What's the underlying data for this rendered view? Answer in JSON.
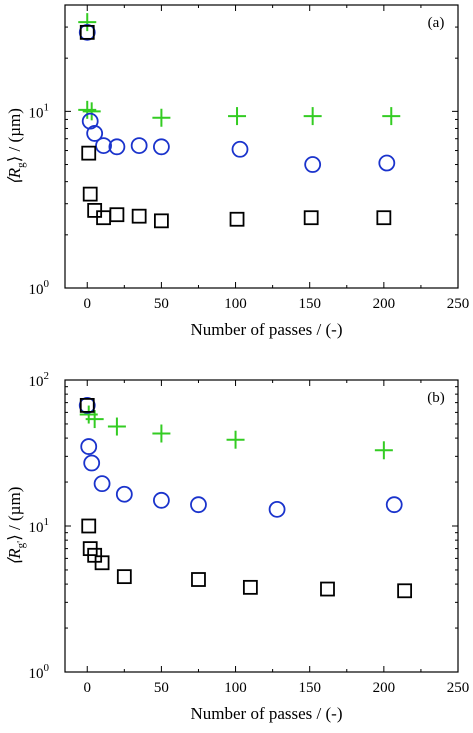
{
  "chart_data": [
    {
      "type": "scatter",
      "panel_label": "(a)",
      "xlabel": "Number of passes / (-)",
      "ylabel_main": "⟨R",
      "ylabel_sub": "g",
      "ylabel_rest": "⟩ / (µm)",
      "scale_y": "log",
      "xlim": [
        -15,
        250
      ],
      "ylim": [
        1,
        40
      ],
      "x_ticks": [
        0,
        50,
        100,
        150,
        200,
        250
      ],
      "x_tick_labels": [
        "0",
        "50",
        "100",
        "150",
        "200",
        "250"
      ],
      "y_ticks": [
        1,
        10
      ],
      "y_tick_base": "10",
      "y_tick_exps": [
        "0",
        "1"
      ],
      "grid": false,
      "series": [
        {
          "marker": "plus",
          "color": "#33cc22",
          "points": [
            [
              0,
              32
            ],
            [
              0,
              10.2
            ],
            [
              3,
              10.0
            ],
            [
              50,
              9.2
            ],
            [
              101,
              9.4
            ],
            [
              152,
              9.4
            ],
            [
              205,
              9.4
            ]
          ]
        },
        {
          "marker": "circle",
          "color": "#1a33cc",
          "points": [
            [
              0,
              28
            ],
            [
              2,
              8.8
            ],
            [
              5,
              7.5
            ],
            [
              11,
              6.4
            ],
            [
              20,
              6.3
            ],
            [
              35,
              6.4
            ],
            [
              50,
              6.3
            ],
            [
              103,
              6.1
            ],
            [
              152,
              5.0
            ],
            [
              202,
              5.1
            ]
          ]
        },
        {
          "marker": "square",
          "color": "#000000",
          "points": [
            [
              0,
              28
            ],
            [
              1,
              5.8
            ],
            [
              2,
              3.4
            ],
            [
              5,
              2.75
            ],
            [
              11,
              2.5
            ],
            [
              20,
              2.6
            ],
            [
              35,
              2.55
            ],
            [
              50,
              2.4
            ],
            [
              101,
              2.45
            ],
            [
              151,
              2.5
            ],
            [
              200,
              2.5
            ]
          ]
        }
      ]
    },
    {
      "type": "scatter",
      "panel_label": "(b)",
      "xlabel": "Number of passes / (-)",
      "ylabel_main": "⟨R",
      "ylabel_sub": "g'",
      "ylabel_rest": "⟩ / (µm)",
      "scale_y": "log",
      "xlim": [
        -15,
        250
      ],
      "ylim": [
        1,
        100
      ],
      "x_ticks": [
        0,
        50,
        100,
        150,
        200,
        250
      ],
      "x_tick_labels": [
        "0",
        "50",
        "100",
        "150",
        "200",
        "250"
      ],
      "y_ticks": [
        1,
        10,
        100
      ],
      "y_tick_base": "10",
      "y_tick_exps": [
        "0",
        "1",
        "2"
      ],
      "grid": false,
      "series": [
        {
          "marker": "plus",
          "color": "#33cc22",
          "points": [
            [
              1,
              58
            ],
            [
              5,
              54
            ],
            [
              20,
              48
            ],
            [
              50,
              43
            ],
            [
              100,
              39
            ],
            [
              200,
              33
            ]
          ]
        },
        {
          "marker": "circle",
          "color": "#1a33cc",
          "points": [
            [
              0,
              67
            ],
            [
              1,
              35
            ],
            [
              3,
              27
            ],
            [
              10,
              19.5
            ],
            [
              25,
              16.5
            ],
            [
              50,
              15
            ],
            [
              75,
              14
            ],
            [
              128,
              13
            ],
            [
              207,
              14
            ]
          ]
        },
        {
          "marker": "square",
          "color": "#000000",
          "points": [
            [
              0,
              67
            ],
            [
              1,
              10
            ],
            [
              2,
              7.0
            ],
            [
              5,
              6.3
            ],
            [
              10,
              5.6
            ],
            [
              25,
              4.5
            ],
            [
              75,
              4.3
            ],
            [
              110,
              3.8
            ],
            [
              162,
              3.7
            ],
            [
              214,
              3.6
            ]
          ]
        }
      ]
    }
  ]
}
